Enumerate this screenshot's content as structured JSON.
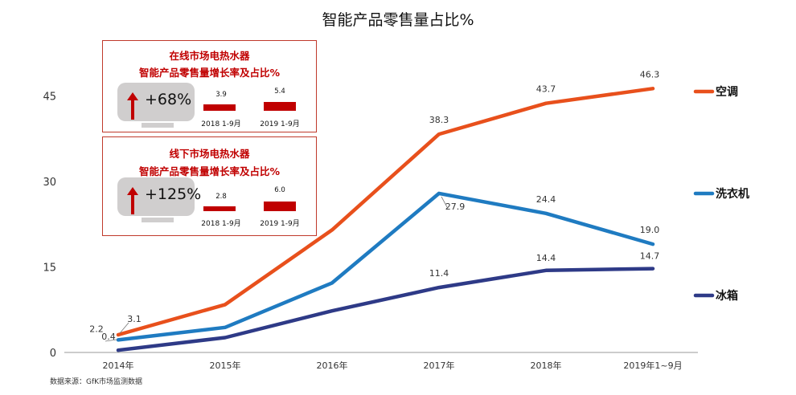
{
  "chart_data": {
    "type": "line",
    "title": "智能产品零售量占比%",
    "categories": [
      "2014年",
      "2015年",
      "2016年",
      "2017年",
      "2018年",
      "2019年1~9月"
    ],
    "ylim": [
      0,
      50
    ],
    "yticks": [
      "0",
      "15",
      "30",
      "45"
    ],
    "series": [
      {
        "name": "空调",
        "color": "#e8501c",
        "values": [
          3.1,
          8.4,
          21.5,
          38.3,
          43.7,
          46.3
        ],
        "labels": [
          "3.1",
          "",
          "",
          "38.3",
          "43.7",
          "46.3"
        ]
      },
      {
        "name": "洗衣机",
        "color": "#1f7bc1",
        "values": [
          2.2,
          4.4,
          12.2,
          27.9,
          24.4,
          19.0
        ],
        "labels": [
          "2.2",
          "",
          "",
          "27.9",
          "24.4",
          "19.0"
        ]
      },
      {
        "name": "冰箱",
        "color": "#2e3a87",
        "values": [
          0.4,
          2.6,
          7.3,
          11.4,
          14.4,
          14.7
        ],
        "labels": [
          "0.4",
          "",
          "",
          "11.4",
          "14.4",
          "14.7"
        ]
      }
    ],
    "source": "数据来源：GfK市场监测数据"
  },
  "panels": [
    {
      "title1": "在线市场电热水器",
      "title2": "智能产品零售量增长率及占比%",
      "growth": "+68%",
      "bars": [
        {
          "value": 3.9,
          "label": "3.9",
          "period": "2018 1-9月"
        },
        {
          "value": 5.4,
          "label": "5.4",
          "period": "2019 1-9月"
        }
      ]
    },
    {
      "title1": "线下市场电热水器",
      "title2": "智能产品零售量增长率及占比%",
      "growth": "+125%",
      "bars": [
        {
          "value": 2.8,
          "label": "2.8",
          "period": "2018 1-9月"
        },
        {
          "value": 6.0,
          "label": "6.0",
          "period": "2019 1-9月"
        }
      ]
    }
  ]
}
